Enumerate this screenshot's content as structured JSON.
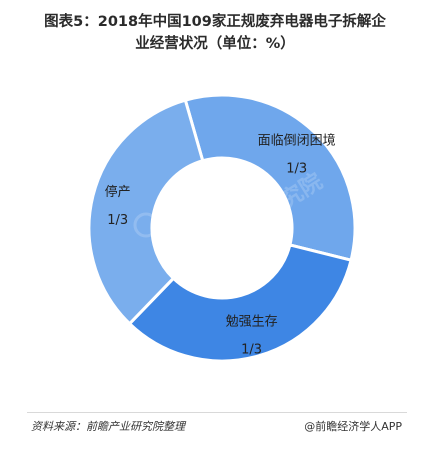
{
  "title_line1": "图表5：2018年中国109家正规废弃电器电子拆解企",
  "title_line2": "业经营状况（单位：%）",
  "chart_data": {
    "type": "pie",
    "title": "图表5：2018年中国109家正规废弃电器电子拆解企业经营状况（单位：%）",
    "unit": "%",
    "categories": [
      "面临倒闭困境",
      "勉强生存",
      "停产"
    ],
    "values": [
      33.33,
      33.33,
      33.33
    ],
    "value_labels": [
      "1/3",
      "1/3",
      "1/3"
    ],
    "colors": [
      "#6fa7ec",
      "#3e86e4",
      "#7aaeed"
    ],
    "donut": true,
    "legend": "none"
  },
  "watermark": "前瞻产业研究院",
  "footer": {
    "source": "资料来源：前瞻产业研究院整理",
    "brand": "@前瞻经济学人APP"
  }
}
